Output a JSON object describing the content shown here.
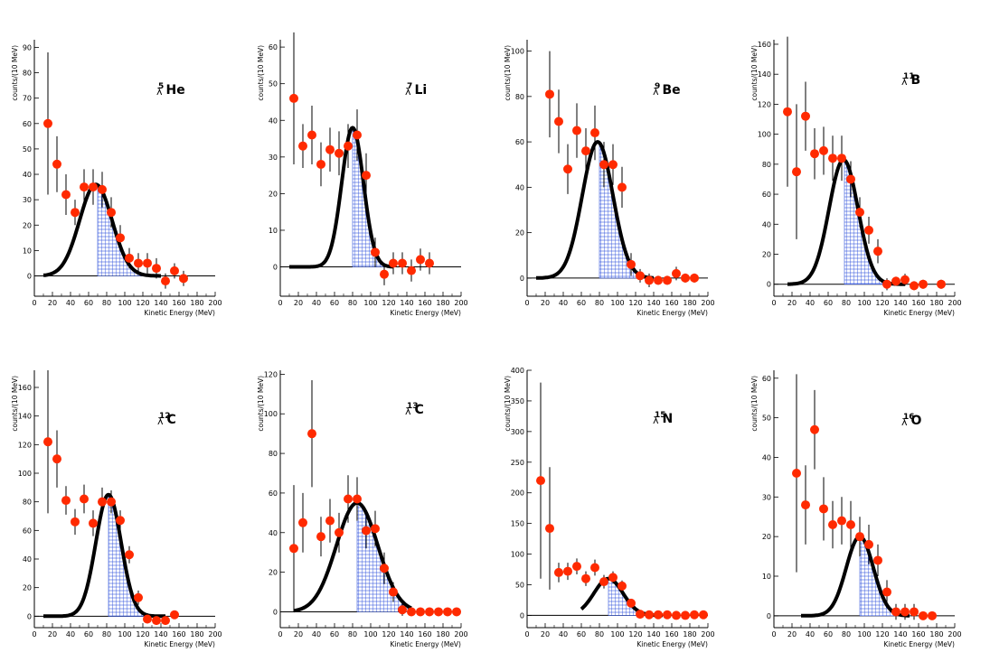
{
  "colors": {
    "points": "#ff2a00",
    "errorbars": "#000000",
    "fit": "#000000",
    "hatch": "#3355dd",
    "axis": "#000000"
  },
  "chart_data": [
    {
      "type": "scatter",
      "nucleus": "He",
      "mass": "5",
      "lambda": "λ",
      "xlabel": "Kinetic Energy (MeV)",
      "ylabel": "counts/(10 MeV)",
      "xlim": [
        0,
        200
      ],
      "ylim": [
        -8,
        93
      ],
      "xticks": [
        "0",
        "20",
        "40",
        "60",
        "80",
        "100",
        "120",
        "140",
        "160",
        "180",
        "200"
      ],
      "yticks": [
        "0",
        "10",
        "20",
        "30",
        "40",
        "50",
        "60",
        "70",
        "80",
        "90"
      ],
      "x": [
        15,
        25,
        35,
        45,
        55,
        65,
        75,
        85,
        95,
        105,
        115,
        125,
        135,
        145,
        155,
        165
      ],
      "y": [
        60,
        44,
        32,
        25,
        35,
        35,
        34,
        25,
        15,
        7,
        5,
        5,
        3,
        -2,
        2,
        -1
      ],
      "err": [
        28,
        11,
        8,
        5,
        7,
        7,
        7,
        6,
        5,
        4,
        4,
        4,
        4,
        3,
        3,
        3
      ],
      "fit": {
        "amp": 36,
        "mean": 68,
        "sigma": 18,
        "start": 10,
        "end": 140,
        "shade_from": 70
      }
    },
    {
      "type": "scatter",
      "nucleus": "Li",
      "mass": "7",
      "lambda": "λ",
      "xlabel": "Kinetic Energy (MeV)",
      "ylabel": "counts/(10 MeV)",
      "xlim": [
        0,
        200
      ],
      "ylim": [
        -8,
        62
      ],
      "xticks": [
        "0",
        "20",
        "40",
        "60",
        "80",
        "100",
        "120",
        "140",
        "160",
        "180",
        "200"
      ],
      "yticks": [
        "0",
        "10",
        "20",
        "30",
        "40",
        "50",
        "60"
      ],
      "x": [
        15,
        25,
        35,
        45,
        55,
        65,
        75,
        85,
        95,
        105,
        115,
        125,
        135,
        145,
        155,
        165
      ],
      "y": [
        46,
        33,
        36,
        28,
        32,
        31,
        33,
        36,
        25,
        4,
        -2,
        1,
        1,
        -1,
        2,
        1
      ],
      "err": [
        18,
        6,
        8,
        6,
        6,
        6,
        6,
        7,
        6,
        4,
        3,
        3,
        3,
        3,
        3,
        3
      ],
      "fit": {
        "amp": 38,
        "mean": 80,
        "sigma": 12,
        "start": 10,
        "end": 125,
        "shade_from": 80
      }
    },
    {
      "type": "scatter",
      "nucleus": "Be",
      "mass": "9",
      "lambda": "λ",
      "xlabel": "Kinetic Energy (MeV)",
      "ylabel": "counts/(10 MeV)",
      "xlim": [
        0,
        200
      ],
      "ylim": [
        -8,
        105
      ],
      "xticks": [
        "0",
        "20",
        "40",
        "60",
        "80",
        "100",
        "120",
        "140",
        "160",
        "180",
        "200"
      ],
      "yticks": [
        "0",
        "20",
        "40",
        "60",
        "80",
        "100"
      ],
      "x": [
        25,
        35,
        45,
        55,
        65,
        75,
        85,
        95,
        105,
        115,
        125,
        135,
        145,
        155,
        165,
        175,
        185
      ],
      "y": [
        81,
        69,
        48,
        65,
        56,
        64,
        50,
        50,
        40,
        6,
        1,
        -1,
        -1,
        -1,
        2,
        0,
        0
      ],
      "err": [
        19,
        14,
        11,
        12,
        10,
        12,
        10,
        9,
        9,
        5,
        3,
        3,
        2,
        2,
        3,
        2,
        2
      ],
      "fit": {
        "amp": 60,
        "mean": 78,
        "sigma": 17,
        "start": 10,
        "end": 140,
        "shade_from": 80
      }
    },
    {
      "type": "scatter",
      "nucleus": "B",
      "mass": "11",
      "lambda": "λ",
      "xlabel": "Kinetic Energy (MeV)",
      "ylabel": "counts/(10 MeV)",
      "xlim": [
        0,
        200
      ],
      "ylim": [
        -8,
        163
      ],
      "xticks": [
        "0",
        "20",
        "40",
        "60",
        "80",
        "100",
        "120",
        "140",
        "160",
        "180",
        "200"
      ],
      "yticks": [
        "0",
        "20",
        "40",
        "60",
        "80",
        "100",
        "120",
        "140",
        "160"
      ],
      "x": [
        15,
        25,
        35,
        45,
        55,
        65,
        75,
        85,
        95,
        105,
        115,
        125,
        135,
        145,
        155,
        165,
        185
      ],
      "y": [
        115,
        75,
        112,
        87,
        89,
        84,
        84,
        70,
        48,
        36,
        22,
        0,
        2,
        3,
        -1,
        0,
        0
      ],
      "err": [
        50,
        45,
        23,
        17,
        16,
        15,
        15,
        12,
        10,
        9,
        8,
        4,
        3,
        4,
        3,
        3,
        3
      ],
      "fit": {
        "amp": 83,
        "mean": 77,
        "sigma": 16,
        "start": 15,
        "end": 145,
        "shade_from": 78
      }
    },
    {
      "type": "scatter",
      "nucleus": "C",
      "mass": "12",
      "lambda": "λ",
      "xlabel": "Kinetic Energy (MeV)",
      "ylabel": "counts/(10 MeV)",
      "xlim": [
        0,
        200
      ],
      "ylim": [
        -8,
        172
      ],
      "xticks": [
        "0",
        "20",
        "40",
        "60",
        "80",
        "100",
        "120",
        "140",
        "160",
        "180",
        "200"
      ],
      "yticks": [
        "0",
        "20",
        "40",
        "60",
        "80",
        "100",
        "120",
        "140",
        "160"
      ],
      "x": [
        15,
        25,
        35,
        45,
        55,
        65,
        75,
        85,
        95,
        105,
        115,
        125,
        135,
        145,
        155
      ],
      "y": [
        122,
        110,
        81,
        66,
        82,
        65,
        80,
        80,
        67,
        43,
        13,
        -2,
        -3,
        -3,
        1
      ],
      "err": [
        50,
        20,
        10,
        9,
        10,
        9,
        10,
        8,
        7,
        6,
        5,
        3,
        3,
        3,
        2
      ],
      "fit": {
        "amp": 85,
        "mean": 82,
        "sigma": 14,
        "start": 10,
        "end": 145,
        "shade_from": 82
      }
    },
    {
      "type": "scatter",
      "nucleus": "C",
      "mass": "13",
      "lambda": "λ",
      "xlabel": "Kinetic Energy (MeV)",
      "ylabel": "counts/(10 MeV)",
      "xlim": [
        0,
        200
      ],
      "ylim": [
        -8,
        122
      ],
      "xticks": [
        "0",
        "20",
        "40",
        "60",
        "80",
        "100",
        "120",
        "140",
        "160",
        "180",
        "200"
      ],
      "yticks": [
        "0",
        "20",
        "40",
        "60",
        "80",
        "100",
        "120"
      ],
      "x": [
        15,
        25,
        35,
        45,
        55,
        65,
        75,
        85,
        95,
        105,
        115,
        125,
        135,
        145,
        155,
        165,
        175,
        185,
        195
      ],
      "y": [
        32,
        45,
        90,
        38,
        46,
        40,
        57,
        57,
        41,
        42,
        22,
        10,
        1,
        0,
        0,
        0,
        0,
        0,
        0
      ],
      "err": [
        32,
        15,
        27,
        10,
        11,
        10,
        12,
        11,
        9,
        9,
        8,
        5,
        3,
        2,
        2,
        2,
        2,
        2,
        2
      ],
      "fit": {
        "amp": 55,
        "mean": 85,
        "sigma": 23,
        "start": 15,
        "end": 145,
        "shade_from": 85
      }
    },
    {
      "type": "scatter",
      "nucleus": "N",
      "mass": "15",
      "lambda": "λ",
      "xlabel": "Kinetic Energy (MeV)",
      "ylabel": "counts/(10 MeV)",
      "xlim": [
        0,
        200
      ],
      "ylim": [
        -20,
        400
      ],
      "xticks": [
        "0",
        "20",
        "40",
        "60",
        "80",
        "100",
        "120",
        "140",
        "160",
        "180",
        "200"
      ],
      "yticks": [
        "0",
        "50",
        "100",
        "150",
        "200",
        "250",
        "300",
        "350",
        "400"
      ],
      "x": [
        15,
        25,
        35,
        45,
        55,
        65,
        75,
        85,
        95,
        105,
        115,
        125,
        135,
        145,
        155,
        165,
        175,
        185,
        195
      ],
      "y": [
        220,
        142,
        70,
        72,
        80,
        60,
        78,
        55,
        62,
        48,
        20,
        2,
        1,
        1,
        1,
        0,
        0,
        1,
        1
      ],
      "err": [
        160,
        100,
        16,
        14,
        13,
        12,
        13,
        11,
        10,
        9,
        7,
        3,
        2,
        2,
        2,
        2,
        2,
        2,
        2
      ],
      "fit": {
        "amp": 60,
        "mean": 90,
        "sigma": 16,
        "start": 60,
        "end": 150,
        "shade_from": 90
      }
    },
    {
      "type": "scatter",
      "nucleus": "O",
      "mass": "16",
      "lambda": "λ",
      "xlabel": "Kinetic Energy (MeV)",
      "ylabel": "counts/(10 MeV)",
      "xlim": [
        0,
        200
      ],
      "ylim": [
        -3,
        62
      ],
      "xticks": [
        "0",
        "20",
        "40",
        "60",
        "80",
        "100",
        "120",
        "140",
        "160",
        "180",
        "200"
      ],
      "yticks": [
        "0",
        "10",
        "20",
        "30",
        "40",
        "50",
        "60"
      ],
      "x": [
        25,
        35,
        45,
        55,
        65,
        75,
        85,
        95,
        105,
        115,
        125,
        135,
        145,
        155,
        165,
        175
      ],
      "y": [
        36,
        28,
        47,
        27,
        23,
        24,
        23,
        20,
        18,
        14,
        6,
        1,
        1,
        1,
        0,
        0
      ],
      "err": [
        25,
        10,
        10,
        8,
        6,
        6,
        6,
        5,
        5,
        4,
        3,
        2,
        2,
        2,
        1,
        1
      ],
      "fit": {
        "amp": 20,
        "mean": 95,
        "sigma": 15,
        "start": 30,
        "end": 150,
        "shade_from": 95
      }
    }
  ]
}
